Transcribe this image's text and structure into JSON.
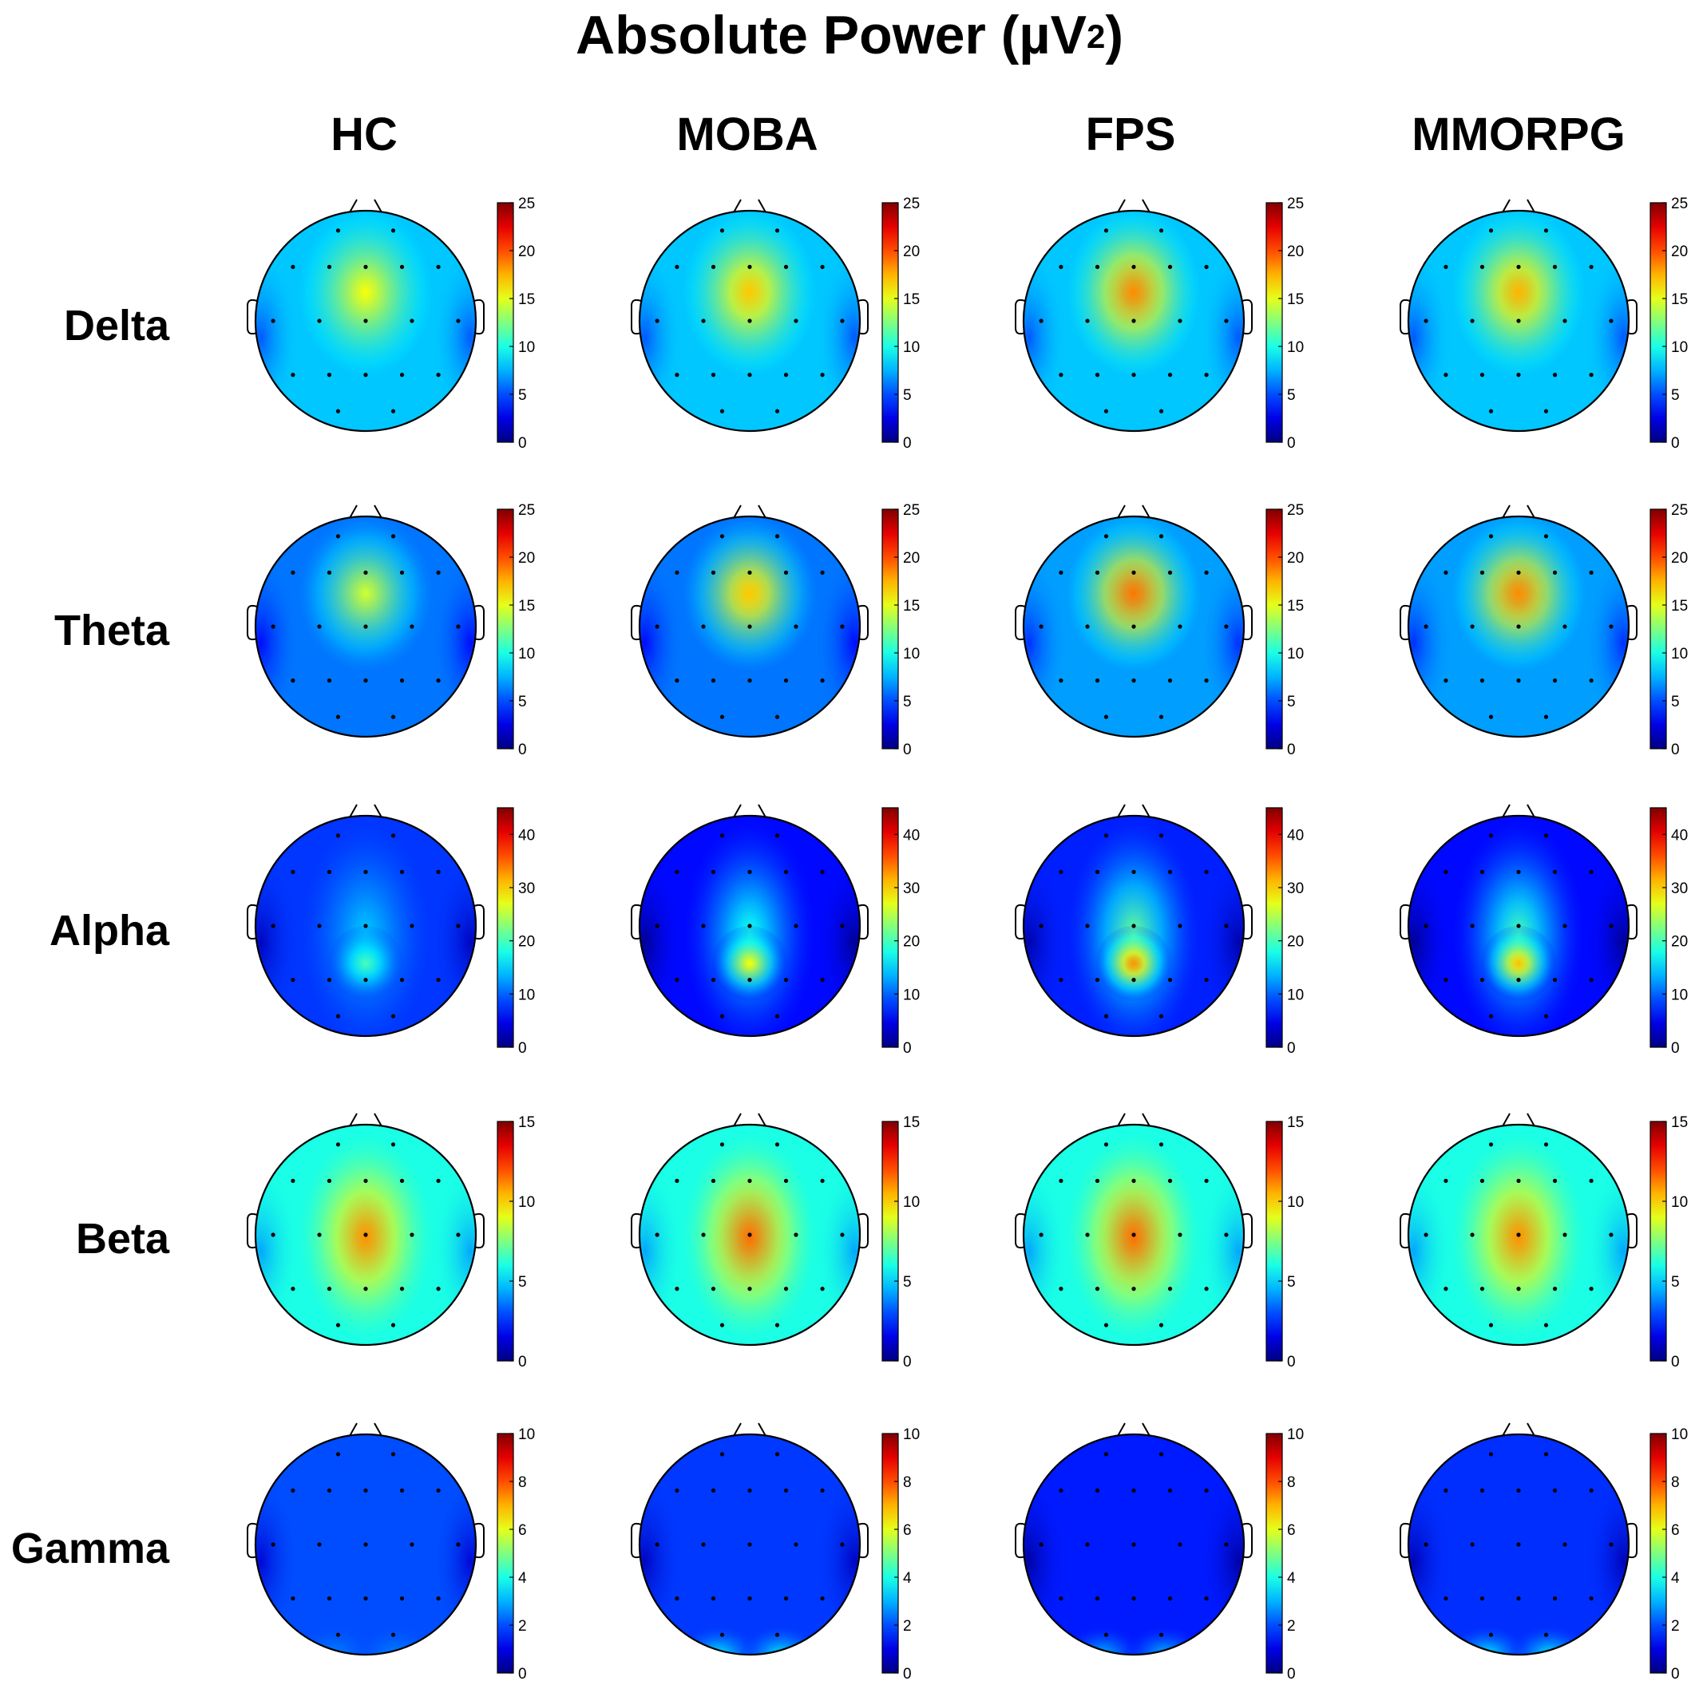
{
  "title": "Absolute Power",
  "title_unit": "(µV",
  "title_sup": "2",
  "title_close": ")",
  "columns": [
    "HC",
    "MOBA",
    "FPS",
    "MMORPG"
  ],
  "rows": [
    {
      "label": "Delta",
      "colorbar": {
        "min": 0,
        "max": 25,
        "ticks": [
          0,
          5,
          10,
          15,
          20,
          25
        ]
      }
    },
    {
      "label": "Theta",
      "colorbar": {
        "min": 0,
        "max": 25,
        "ticks": [
          0,
          5,
          10,
          15,
          20,
          25
        ]
      }
    },
    {
      "label": "Alpha",
      "colorbar": {
        "min": 0,
        "max": 45,
        "ticks": [
          0,
          10,
          20,
          30,
          40
        ]
      }
    },
    {
      "label": "Beta",
      "colorbar": {
        "min": 0,
        "max": 15,
        "ticks": [
          0,
          5,
          10,
          15
        ]
      }
    },
    {
      "label": "Gamma",
      "colorbar": {
        "min": 0,
        "max": 10,
        "ticks": [
          0,
          2,
          4,
          6,
          8,
          10
        ]
      }
    }
  ],
  "chart_data": {
    "type": "heatmap",
    "colormap": "jet",
    "title": "Absolute Power (µV²)",
    "groups": [
      "HC",
      "MOBA",
      "FPS",
      "MMORPG"
    ],
    "bands": [
      "Delta",
      "Theta",
      "Alpha",
      "Beta",
      "Gamma"
    ],
    "approx_values_by_band": {
      "Delta": {
        "HC": {
          "base": 8,
          "peak": 15.5
        },
        "MOBA": {
          "base": 8,
          "peak": 17
        },
        "FPS": {
          "base": 8,
          "peak": 18.5
        },
        "MMORPG": {
          "base": 8,
          "peak": 17.5
        }
      },
      "Theta": {
        "HC": {
          "base": 6,
          "peak": 14.5
        },
        "MOBA": {
          "base": 6,
          "peak": 17
        },
        "FPS": {
          "base": 7,
          "peak": 19
        },
        "MMORPG": {
          "base": 7,
          "peak": 18.5
        }
      },
      "Alpha": {
        "HC": {
          "base": 8,
          "peak": 20
        },
        "MOBA": {
          "base": 6,
          "peak": 28
        },
        "FPS": {
          "base": 7,
          "peak": 33
        },
        "MMORPG": {
          "base": 6,
          "peak": 31
        }
      },
      "Beta": {
        "HC": {
          "base": 6,
          "peak": 11
        },
        "MOBA": {
          "base": 6,
          "peak": 11.5
        },
        "FPS": {
          "base": 6,
          "peak": 11.5
        },
        "MMORPG": {
          "base": 6,
          "peak": 11
        }
      },
      "Gamma": {
        "HC": {
          "base": 2,
          "peak": 2.5
        },
        "MOBA": {
          "base": 1.8,
          "peak": 3.5
        },
        "FPS": {
          "base": 1.5,
          "peak": 3
        },
        "MMORPG": {
          "base": 1.7,
          "peak": 3.5
        }
      }
    }
  }
}
